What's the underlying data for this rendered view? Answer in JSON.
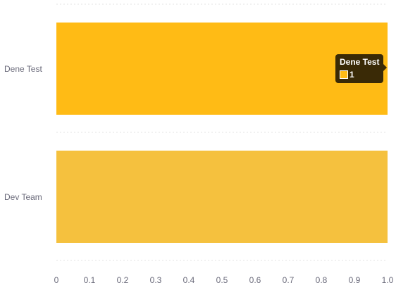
{
  "chart_data": {
    "type": "bar",
    "orientation": "horizontal",
    "categories": [
      "Dene Test",
      "Dev Team"
    ],
    "values": [
      1,
      1
    ],
    "bar_colors": [
      "#ffbb15",
      "#f5c13e"
    ],
    "xlim": [
      0,
      1
    ],
    "x_ticks": [
      "0",
      "0.1",
      "0.2",
      "0.3",
      "0.4",
      "0.5",
      "0.6",
      "0.7",
      "0.8",
      "0.9",
      "1.0"
    ],
    "grid": "horizontal dotted separators",
    "legend": "none"
  },
  "tooltip": {
    "title": "Dene Test",
    "value": "1",
    "swatch_color": "#ffbb15"
  }
}
